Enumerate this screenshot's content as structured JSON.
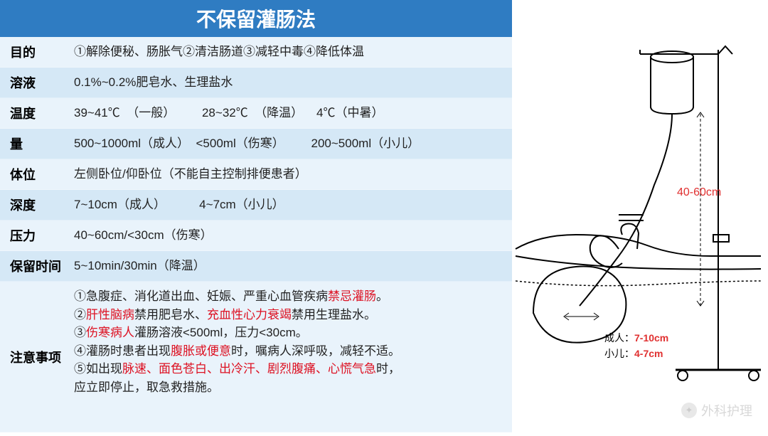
{
  "title": "不保留灌肠法",
  "colors": {
    "header_bg": "#2f7cc2",
    "row_alt_a": "#e9f3fb",
    "row_alt_b": "#d5e8f6",
    "highlight": "#dd1122",
    "text": "#222222",
    "diagram_red": "#e03030"
  },
  "rows": [
    {
      "label": "目的",
      "text": "①解除便秘、肠胀气②清洁肠道③减轻中毒④降低体温"
    },
    {
      "label": "溶液",
      "text": "0.1%~0.2%肥皂水、生理盐水"
    },
    {
      "label": "温度",
      "text": "39~41℃  （一般）        28~32℃  （降温）    4℃（中暑）"
    },
    {
      "label": "量",
      "text": "500~1000ml（成人）  <500ml（伤寒）        200~500ml（小儿）"
    },
    {
      "label": "体位",
      "text": "左侧卧位/仰卧位（不能自主控制排便患者）"
    },
    {
      "label": "深度",
      "text": "7~10cm（成人）          4~7cm（小儿）"
    },
    {
      "label": "压力",
      "text": "40~60cm/<30cm（伤寒）"
    },
    {
      "label": "保留时间",
      "text": "5~10min/30min（降温）"
    }
  ],
  "notes": {
    "label": "注意事项",
    "lines": [
      [
        {
          "t": "①急腹症、消化道出血、妊娠、严重心血管疾病"
        },
        {
          "t": "禁忌灌肠",
          "red": true
        },
        {
          "t": "。"
        }
      ],
      [
        {
          "t": "②"
        },
        {
          "t": "肝性脑病",
          "red": true
        },
        {
          "t": "禁用肥皂水、"
        },
        {
          "t": "充血性心力衰竭",
          "red": true
        },
        {
          "t": "禁用生理盐水。"
        }
      ],
      [
        {
          "t": "③"
        },
        {
          "t": "伤寒病人",
          "red": true
        },
        {
          "t": "灌肠溶液<500ml，压力<30cm。"
        }
      ],
      [
        {
          "t": "④灌肠时患者出现"
        },
        {
          "t": "腹胀或便意",
          "red": true
        },
        {
          "t": "时，嘱病人深呼吸，减轻不适。"
        }
      ],
      [
        {
          "t": "⑤如出现"
        },
        {
          "t": "脉速、面色苍白、出冷汗、剧烈腹痛、心慌气急",
          "red": true
        },
        {
          "t": "时，"
        }
      ],
      [
        {
          "t": "应立即停止，取急救措施。"
        }
      ]
    ]
  },
  "diagram": {
    "height_label": "40-60cm",
    "adult_label_prefix": "成人：",
    "adult_value": "7-10cm",
    "child_label_prefix": "小儿：",
    "child_value": "4-7cm"
  },
  "watermark": "外科护理"
}
